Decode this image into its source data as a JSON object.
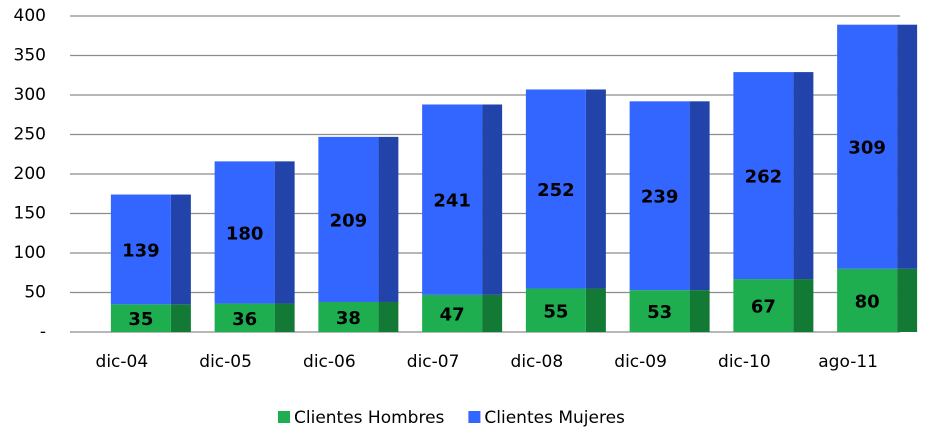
{
  "chart_data": {
    "type": "stacked_bar",
    "categories": [
      "dic-04",
      "dic-05",
      "dic-06",
      "dic-07",
      "dic-08",
      "dic-09",
      "dic-10",
      "ago-11"
    ],
    "series": [
      {
        "name": "Clientes Hombres",
        "color": "#1fae4f",
        "side_color": "#137a35",
        "values": [
          35,
          36,
          38,
          47,
          55,
          53,
          67,
          80
        ]
      },
      {
        "name": "Clientes Mujeres",
        "color": "#3366ff",
        "side_color": "#2244aa",
        "values": [
          139,
          180,
          209,
          241,
          252,
          239,
          262,
          309
        ]
      }
    ],
    "ylim": [
      0,
      400
    ],
    "yticks": [
      {
        "value": 0,
        "label": "-"
      },
      50,
      100,
      150,
      200,
      250,
      300,
      350,
      400
    ],
    "grid": true,
    "legend": "bottom"
  }
}
